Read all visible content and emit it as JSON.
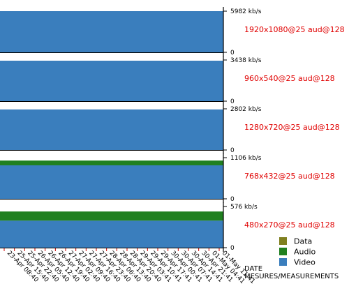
{
  "chart_data": {
    "type": "area",
    "xlabel": [
      "DATE",
      "MESURES/MEASUREMENTS"
    ],
    "x": [
      "23-Apr 08:40",
      "25-Apr 15:40",
      "25-Apr 22:40",
      "26-Apr 05:40",
      "26-Apr 12:40",
      "26-Apr 19:40",
      "27-Apr 02:40",
      "27-Apr 09:40",
      "27-Apr 16:40",
      "27-Apr 23:40",
      "28-Apr 06:40",
      "28-Apr 13:40",
      "28-Apr 20:40",
      "29-Apr 03:41",
      "29-Apr 10:41",
      "29-Apr 17:41",
      "30-Apr 00:41",
      "30-Apr 07:41",
      "30-Apr 14:41",
      "30-Apr 21:41",
      "01-May 04:41",
      "01-May 11:41"
    ],
    "legend": [
      {
        "name": "Data",
        "color": "#808020"
      },
      {
        "name": "Audio",
        "color": "#208020"
      },
      {
        "name": "Video",
        "color": "#3a7ebd"
      }
    ],
    "panels": [
      {
        "label": "1920x1080@25 aud@128",
        "max_label": "5982 kb/s",
        "zero_label": "0",
        "max": 5982,
        "series": [
          {
            "name": "Video",
            "value": 5982
          },
          {
            "name": "Audio",
            "value": 0
          },
          {
            "name": "Data",
            "value": 0
          }
        ]
      },
      {
        "label": "960x540@25 aud@128",
        "max_label": "3438 kb/s",
        "zero_label": "0",
        "max": 3438,
        "series": [
          {
            "name": "Video",
            "value": 3380
          },
          {
            "name": "Audio",
            "value": 0
          },
          {
            "name": "Data",
            "value": 0
          }
        ]
      },
      {
        "label": "1280x720@25 aud@128",
        "max_label": "2802 kb/s",
        "zero_label": "0",
        "max": 2802,
        "series": [
          {
            "name": "Video",
            "value": 2760
          },
          {
            "name": "Audio",
            "value": 0
          },
          {
            "name": "Data",
            "value": 0
          }
        ]
      },
      {
        "label": "768x432@25 aud@128",
        "max_label": "1106 kb/s",
        "zero_label": "0",
        "max": 1106,
        "series": [
          {
            "name": "Video",
            "value": 900
          },
          {
            "name": "Audio",
            "value": 128
          },
          {
            "name": "Data",
            "value": 0
          }
        ]
      },
      {
        "label": "480x270@25 aud@128",
        "max_label": "576 kb/s",
        "zero_label": "0",
        "max": 576,
        "series": [
          {
            "name": "Video",
            "value": 378
          },
          {
            "name": "Audio",
            "value": 128
          },
          {
            "name": "Data",
            "value": 0
          }
        ]
      }
    ]
  }
}
